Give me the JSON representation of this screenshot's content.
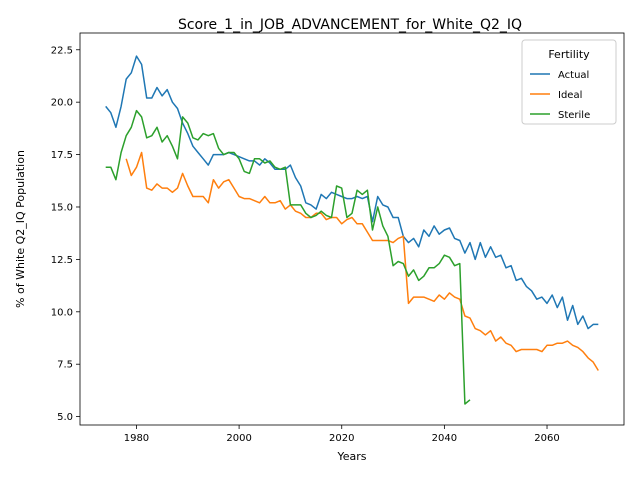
{
  "chart_data": {
    "type": "line",
    "title": "Score_1_in_JOB_ADVANCEMENT_for_White_Q2_IQ",
    "xlabel": "Years",
    "ylabel": "% of White Q2_IQ Population",
    "xlim": [
      1969,
      2075
    ],
    "ylim": [
      4.6,
      23.3
    ],
    "xticks": [
      1980,
      2000,
      2020,
      2040,
      2060
    ],
    "yticks": [
      5.0,
      7.5,
      10.0,
      12.5,
      15.0,
      17.5,
      20.0,
      22.5
    ],
    "xtick_labels": [
      "1980",
      "2000",
      "2020",
      "2040",
      "2060"
    ],
    "ytick_labels": [
      "5.0",
      "7.5",
      "10.0",
      "12.5",
      "15.0",
      "17.5",
      "20.0",
      "22.5"
    ],
    "grid": false,
    "legend": {
      "title": "Fertility",
      "placement": "top-right"
    },
    "series": [
      {
        "name": "Actual",
        "color": "#1f77b4",
        "x": [
          1974,
          1975,
          1976,
          1977,
          1978,
          1979,
          1980,
          1981,
          1982,
          1983,
          1984,
          1985,
          1986,
          1987,
          1988,
          1989,
          1990,
          1991,
          1992,
          1993,
          1994,
          1995,
          1996,
          1997,
          1998,
          1999,
          2000,
          2001,
          2002,
          2003,
          2004,
          2005,
          2006,
          2007,
          2008,
          2009,
          2010,
          2011,
          2012,
          2013,
          2014,
          2015,
          2016,
          2017,
          2018,
          2019,
          2020,
          2021,
          2022,
          2023,
          2024,
          2025,
          2026,
          2027,
          2028,
          2029,
          2030,
          2031,
          2032,
          2033,
          2034,
          2035,
          2036,
          2037,
          2038,
          2039,
          2040,
          2041,
          2042,
          2043,
          2044,
          2045,
          2046,
          2047,
          2048,
          2049,
          2050,
          2051,
          2052,
          2053,
          2054,
          2055,
          2056,
          2057,
          2058,
          2059,
          2060,
          2061,
          2062,
          2063,
          2064,
          2065,
          2066,
          2067,
          2068,
          2069,
          2070
        ],
        "y": [
          19.8,
          19.5,
          18.8,
          19.8,
          21.1,
          21.4,
          22.2,
          21.8,
          20.2,
          20.2,
          20.7,
          20.3,
          20.6,
          20.0,
          19.7,
          19.0,
          18.5,
          17.9,
          17.6,
          17.3,
          17.0,
          17.5,
          17.5,
          17.5,
          17.6,
          17.5,
          17.4,
          17.3,
          17.2,
          17.2,
          17.0,
          17.3,
          17.1,
          16.8,
          16.8,
          16.8,
          17.0,
          16.4,
          16.0,
          15.2,
          15.1,
          14.9,
          15.6,
          15.4,
          15.7,
          15.6,
          15.5,
          15.4,
          15.4,
          15.5,
          15.4,
          15.5,
          14.3,
          15.5,
          15.1,
          15.0,
          14.5,
          14.5,
          13.6,
          13.3,
          13.5,
          13.1,
          13.9,
          13.6,
          14.1,
          13.7,
          13.9,
          14.0,
          13.5,
          13.4,
          12.8,
          13.3,
          12.5,
          13.3,
          12.6,
          13.1,
          12.6,
          12.7,
          12.1,
          12.2,
          11.5,
          11.6,
          11.2,
          11.0,
          10.6,
          10.7,
          10.4,
          10.8,
          10.2,
          10.7,
          9.6,
          10.3,
          9.4,
          9.8,
          9.2,
          9.4,
          9.4
        ]
      },
      {
        "name": "Ideal",
        "color": "#ff7f0e",
        "x": [
          1978,
          1979,
          1980,
          1981,
          1982,
          1983,
          1984,
          1985,
          1986,
          1987,
          1988,
          1989,
          1990,
          1991,
          1992,
          1993,
          1994,
          1995,
          1996,
          1997,
          1998,
          1999,
          2000,
          2001,
          2002,
          2003,
          2004,
          2005,
          2006,
          2007,
          2008,
          2009,
          2010,
          2011,
          2012,
          2013,
          2014,
          2015,
          2016,
          2017,
          2018,
          2019,
          2020,
          2021,
          2022,
          2023,
          2024,
          2025,
          2026,
          2027,
          2028,
          2029,
          2030,
          2031,
          2032,
          2033,
          2034,
          2035,
          2036,
          2037,
          2038,
          2039,
          2040,
          2041,
          2042,
          2043,
          2044,
          2045,
          2046,
          2047,
          2048,
          2049,
          2050,
          2051,
          2052,
          2053,
          2054,
          2055,
          2056,
          2057,
          2058,
          2059,
          2060,
          2061,
          2062,
          2063,
          2064,
          2065,
          2066,
          2067,
          2068,
          2069,
          2070
        ],
        "y": [
          17.3,
          16.5,
          16.9,
          17.6,
          15.9,
          15.8,
          16.1,
          15.9,
          15.9,
          15.7,
          15.9,
          16.6,
          16.0,
          15.5,
          15.5,
          15.5,
          15.2,
          16.3,
          15.9,
          16.2,
          16.3,
          15.9,
          15.5,
          15.4,
          15.4,
          15.3,
          15.2,
          15.5,
          15.2,
          15.2,
          15.3,
          14.9,
          15.1,
          14.8,
          14.7,
          14.5,
          14.5,
          14.7,
          14.7,
          14.4,
          14.5,
          14.5,
          14.2,
          14.4,
          14.5,
          14.2,
          14.2,
          13.8,
          13.4,
          13.4,
          13.4,
          13.4,
          13.3,
          13.5,
          13.6,
          10.4,
          10.7,
          10.7,
          10.7,
          10.6,
          10.5,
          10.8,
          10.6,
          10.9,
          10.7,
          10.6,
          9.8,
          9.7,
          9.2,
          9.1,
          8.9,
          9.1,
          8.6,
          8.8,
          8.5,
          8.4,
          8.1,
          8.2,
          8.2,
          8.2,
          8.2,
          8.1,
          8.4,
          8.4,
          8.5,
          8.5,
          8.6,
          8.4,
          8.3,
          8.1,
          7.8,
          7.6,
          7.2
        ]
      },
      {
        "name": "Sterile",
        "color": "#2ca02c",
        "x": [
          1974,
          1975,
          1976,
          1977,
          1978,
          1979,
          1980,
          1981,
          1982,
          1983,
          1984,
          1985,
          1986,
          1987,
          1988,
          1989,
          1990,
          1991,
          1992,
          1993,
          1994,
          1995,
          1996,
          1997,
          1998,
          1999,
          2000,
          2001,
          2002,
          2003,
          2004,
          2005,
          2006,
          2007,
          2008,
          2009,
          2010,
          2011,
          2012,
          2013,
          2014,
          2015,
          2016,
          2017,
          2018,
          2019,
          2020,
          2021,
          2022,
          2023,
          2024,
          2025,
          2026,
          2027,
          2028,
          2029,
          2030,
          2031,
          2032,
          2033,
          2034,
          2035,
          2036,
          2037,
          2038,
          2039,
          2040,
          2041,
          2042,
          2043,
          2044,
          2045
        ],
        "y": [
          16.9,
          16.9,
          16.3,
          17.6,
          18.4,
          18.8,
          19.6,
          19.3,
          18.3,
          18.4,
          18.8,
          18.1,
          18.4,
          17.9,
          17.3,
          19.3,
          19.0,
          18.3,
          18.2,
          18.5,
          18.4,
          18.5,
          17.8,
          17.5,
          17.6,
          17.6,
          17.3,
          16.7,
          16.6,
          17.3,
          17.3,
          17.1,
          17.2,
          16.9,
          16.8,
          16.9,
          15.1,
          15.1,
          15.1,
          14.7,
          14.5,
          14.6,
          14.8,
          14.6,
          14.5,
          16.0,
          15.9,
          14.5,
          14.7,
          15.8,
          15.6,
          15.8,
          13.9,
          15.0,
          14.1,
          13.6,
          12.2,
          12.4,
          12.3,
          11.7,
          12.0,
          11.5,
          11.7,
          12.1,
          12.1,
          12.3,
          12.7,
          12.6,
          12.2,
          12.3,
          5.6,
          5.8
        ]
      }
    ]
  }
}
